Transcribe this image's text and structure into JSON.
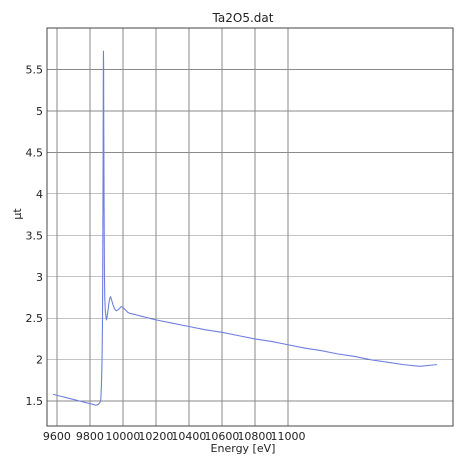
{
  "chart_data": {
    "type": "line",
    "title": "Ta2O5.dat",
    "xlabel": "Energy [eV]",
    "ylabel": "μt",
    "xlim": [
      9540,
      12000
    ],
    "ylim": [
      1.2,
      6.0
    ],
    "grid": true,
    "legend": "none",
    "xticks": [
      9600,
      9800,
      10000,
      10200,
      10400,
      10600,
      10800,
      11000
    ],
    "yticks": [
      1.5,
      2,
      2.5,
      3,
      3.5,
      4,
      4.5,
      5,
      5.5
    ],
    "xtick_labels": [
      "9600",
      "9800",
      "10000",
      "10200",
      "10400",
      "10600",
      "10800",
      "11000"
    ],
    "ytick_labels": [
      "1.5",
      "2",
      "2.5",
      "3",
      "3.5",
      "4",
      "4.5",
      "5",
      "5.5"
    ],
    "series": [
      {
        "color": "#6f7fe0",
        "x": [
          9580,
          9620,
          9660,
          9700,
          9740,
          9780,
          9800,
          9820,
          9835,
          9850,
          9860,
          9866,
          9870,
          9873,
          9876,
          9878,
          9880,
          9881,
          9882,
          9883,
          9884,
          9886,
          9888,
          9890,
          9893,
          9896,
          9900,
          9905,
          9910,
          9915,
          9920,
          9925,
          9930,
          9940,
          9950,
          9960,
          9970,
          9980,
          9990,
          10000,
          10010,
          10020,
          10030,
          10040,
          10060,
          10080,
          10100,
          10120,
          10140,
          10160,
          10180,
          10200,
          10300,
          10400,
          10500,
          10600,
          10700,
          10800,
          10900,
          11000,
          11100,
          11200,
          11300,
          11400,
          11500,
          11600,
          11700,
          11800,
          11900
        ],
        "y": [
          1.58,
          1.56,
          1.54,
          1.52,
          1.5,
          1.48,
          1.47,
          1.46,
          1.45,
          1.46,
          1.48,
          1.52,
          1.7,
          1.95,
          2.4,
          3.2,
          4.4,
          5.3,
          5.72,
          5.55,
          4.8,
          3.8,
          3.05,
          2.75,
          2.6,
          2.54,
          2.48,
          2.53,
          2.6,
          2.68,
          2.74,
          2.76,
          2.73,
          2.66,
          2.61,
          2.59,
          2.6,
          2.62,
          2.64,
          2.63,
          2.61,
          2.59,
          2.57,
          2.56,
          2.55,
          2.54,
          2.53,
          2.52,
          2.51,
          2.5,
          2.49,
          2.48,
          2.44,
          2.4,
          2.36,
          2.33,
          2.29,
          2.25,
          2.22,
          2.18,
          2.14,
          2.11,
          2.07,
          2.04,
          2.0,
          1.97,
          1.94,
          1.92,
          1.94
        ]
      }
    ]
  }
}
